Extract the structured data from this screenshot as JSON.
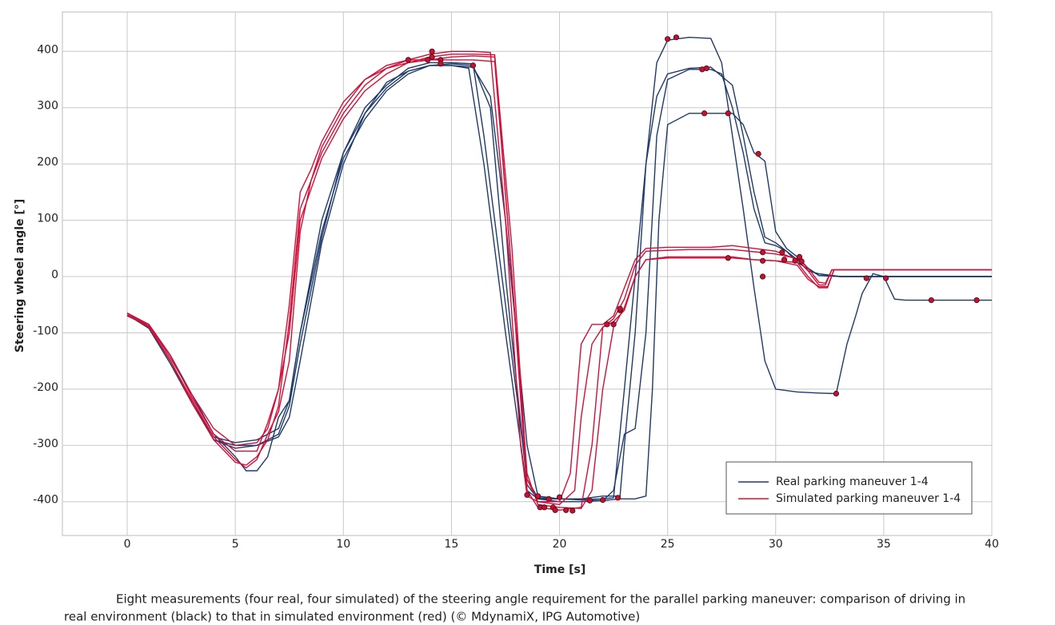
{
  "chart_data": {
    "type": "line",
    "xlabel": "Time [s]",
    "ylabel": "Steering wheel angle [°]",
    "caption": [
      "Eight measurements (four real, four simulated) of the steering angle requirement for the parallel parking maneuver: comparison of driving in",
      "real environment (black) to that in simulated environment (red) (© MdynamiX, IPG Automotive)"
    ],
    "xlim": [
      -3,
      40
    ],
    "ylim": [
      -460,
      470
    ],
    "xticks": [
      0,
      5,
      10,
      15,
      20,
      25,
      30,
      35,
      40
    ],
    "yticks": [
      -400,
      -300,
      -200,
      -100,
      0,
      100,
      200,
      300,
      400
    ],
    "grid": true,
    "legend": "lower right",
    "series": [
      {
        "name": "Real parking maneuver 1-4",
        "color": "#1f3a68",
        "lines": [
          {
            "x": [
              0,
              1,
              2,
              3,
              4,
              5,
              6,
              7,
              7.5,
              8,
              9,
              10,
              11,
              12,
              13,
              14,
              15,
              15.8,
              16.5,
              17.5,
              18.5,
              19,
              20,
              21,
              22,
              22.8,
              23,
              23.5,
              24,
              24.5,
              25,
              26,
              27,
              27.5,
              28,
              28.5,
              29,
              29.5,
              30,
              31,
              32,
              32.8,
              33.3,
              33.7,
              34,
              34.5,
              35,
              35.5,
              36,
              38,
              40
            ],
            "values": [
              -65,
              -90,
              -150,
              -220,
              -285,
              -295,
              -290,
              -270,
              -220,
              -100,
              100,
              220,
              290,
              345,
              365,
              375,
              375,
              370,
              200,
              -100,
              -380,
              -395,
              -395,
              -395,
              -390,
              -390,
              -300,
              -100,
              200,
              380,
              420,
              425,
              423,
              380,
              250,
              120,
              -20,
              -150,
              -200,
              -205,
              -207,
              -208,
              -120,
              -70,
              -30,
              5,
              0,
              -40,
              -42,
              -42,
              -42
            ]
          },
          {
            "x": [
              0,
              1,
              2,
              3,
              4,
              5,
              5.5,
              6,
              6.5,
              7,
              7.5,
              8,
              9,
              10,
              11,
              12,
              13,
              14,
              15,
              16,
              16.8,
              17.5,
              18.5,
              19,
              20,
              21,
              22,
              22.5,
              23,
              23.5,
              24,
              24.5,
              25,
              26,
              27,
              27.5,
              28,
              28.5,
              29,
              29.5,
              30,
              30.5,
              31,
              31.5,
              32,
              33,
              35,
              40
            ],
            "values": [
              -65,
              -85,
              -140,
              -210,
              -280,
              -320,
              -345,
              -345,
              -320,
              -250,
              -220,
              -100,
              80,
              210,
              280,
              330,
              360,
              375,
              378,
              375,
              300,
              0,
              -370,
              -395,
              -400,
              -400,
              -398,
              -380,
              -280,
              -270,
              -100,
              250,
              350,
              368,
              368,
              360,
              300,
              220,
              120,
              60,
              55,
              45,
              30,
              10,
              5,
              0,
              0,
              0
            ]
          },
          {
            "x": [
              0,
              1,
              2,
              3,
              4,
              5,
              6,
              7,
              7.5,
              8,
              9,
              10,
              11,
              12,
              13,
              14,
              15,
              16,
              16.8,
              17.5,
              18.5,
              19,
              20,
              21,
              22,
              22.8,
              23.5,
              24,
              24.3,
              24.6,
              25,
              26,
              27,
              28,
              28.5,
              29,
              29.5,
              30,
              30.5,
              31,
              31.5,
              32,
              33,
              40
            ],
            "values": [
              -70,
              -88,
              -150,
              -220,
              -290,
              -300,
              -300,
              -285,
              -250,
              -150,
              60,
              200,
              290,
              335,
              365,
              375,
              375,
              372,
              320,
              100,
              -300,
              -390,
              -395,
              -397,
              -398,
              -395,
              -395,
              -390,
              -200,
              100,
              270,
              290,
              290,
              290,
              270,
              220,
              205,
              80,
              50,
              35,
              15,
              2,
              0,
              0
            ]
          },
          {
            "x": [
              0,
              1,
              2,
              3,
              4,
              5,
              6,
              7,
              7.5,
              8,
              9,
              10,
              11,
              12,
              13,
              14,
              15,
              16,
              16.5,
              17.5,
              18.5,
              19,
              20,
              21,
              22,
              22.5,
              23,
              23.5,
              24,
              24.5,
              25,
              26,
              27,
              28,
              28.5,
              29,
              29.5,
              30,
              30.5,
              31,
              32,
              33,
              40
            ],
            "values": [
              -68,
              -92,
              -155,
              -225,
              -290,
              -305,
              -300,
              -280,
              -230,
              -120,
              70,
              220,
              300,
              340,
              370,
              380,
              380,
              378,
              250,
              -50,
              -360,
              -393,
              -395,
              -396,
              -395,
              -393,
              -200,
              0,
              200,
              320,
              360,
              370,
              372,
              340,
              250,
              150,
              70,
              60,
              45,
              25,
              2,
              0,
              0
            ]
          }
        ]
      },
      {
        "name": "Simulated parking maneuver 1-4",
        "color": "#d0103a",
        "lines": [
          {
            "x": [
              0,
              1,
              2,
              3,
              4,
              5,
              6,
              6.5,
              7,
              7.5,
              8,
              8.5,
              9,
              10,
              11,
              12,
              13,
              14,
              15,
              16,
              16.8,
              17.5,
              18.2,
              18.5,
              19,
              20,
              20.5,
              21,
              21.5,
              22,
              22.5,
              23,
              23.5,
              24,
              25,
              26,
              27,
              28,
              29,
              30,
              31,
              31.5,
              32,
              32.3,
              32.6,
              35,
              40
            ],
            "values": [
              -65,
              -85,
              -145,
              -210,
              -270,
              -300,
              -295,
              -270,
              -200,
              -50,
              150,
              190,
              240,
              310,
              350,
              370,
              385,
              395,
              400,
              400,
              398,
              100,
              -300,
              -390,
              -400,
              -400,
              -350,
              -120,
              -85,
              -85,
              -70,
              -20,
              30,
              50,
              52,
              52,
              52,
              55,
              50,
              45,
              30,
              10,
              -15,
              -15,
              12,
              12,
              12
            ]
          },
          {
            "x": [
              0,
              1,
              2,
              3,
              4,
              5,
              5.5,
              6,
              6.5,
              7,
              7.5,
              8,
              8.5,
              9,
              10,
              11,
              12,
              13,
              14,
              15,
              16,
              17,
              17.8,
              18.5,
              19,
              20,
              21,
              21.5,
              22,
              22.5,
              23,
              23.5,
              24,
              25,
              27,
              28,
              29,
              30,
              31,
              31.5,
              32,
              32.4,
              32.7,
              40
            ],
            "values": [
              -65,
              -88,
              -150,
              -220,
              -285,
              -325,
              -340,
              -325,
              -280,
              -240,
              -150,
              80,
              170,
              230,
              300,
              350,
              375,
              385,
              385,
              390,
              392,
              390,
              0,
              -380,
              -410,
              -415,
              -410,
              -300,
              -90,
              -80,
              -60,
              0,
              30,
              35,
              35,
              35,
              30,
              28,
              25,
              0,
              -20,
              -20,
              12,
              12
            ]
          },
          {
            "x": [
              0,
              1,
              2,
              3,
              4,
              5,
              5.5,
              6,
              6.5,
              7,
              7.5,
              8,
              9,
              10,
              11,
              12,
              13,
              14,
              15,
              16,
              17,
              17.6,
              18.5,
              19,
              20,
              21,
              21.5,
              22,
              22.5,
              23,
              23.5,
              24,
              25,
              28,
              29,
              30,
              31,
              31.5,
              32,
              32.4,
              32.7,
              40
            ],
            "values": [
              -68,
              -90,
              -150,
              -225,
              -290,
              -330,
              -335,
              -320,
              -290,
              -230,
              -80,
              120,
              220,
              290,
              340,
              370,
              380,
              385,
              385,
              385,
              382,
              100,
              -350,
              -405,
              -410,
              -412,
              -380,
              -200,
              -90,
              -55,
              0,
              30,
              33,
              33,
              30,
              28,
              20,
              -5,
              -18,
              -18,
              12,
              12
            ]
          },
          {
            "x": [
              0,
              1,
              2,
              3,
              4,
              5,
              6,
              6.5,
              7,
              7.5,
              8,
              9,
              10,
              11,
              12,
              13,
              14,
              15,
              16,
              17,
              17.8,
              18.5,
              19,
              20,
              20.7,
              21,
              21.5,
              22,
              22.5,
              23,
              23.5,
              24,
              26,
              28,
              29,
              30,
              31,
              31.5,
              32,
              32.3,
              32.6,
              40
            ],
            "values": [
              -70,
              -85,
              -140,
              -215,
              -280,
              -310,
              -310,
              -260,
              -200,
              -100,
              100,
              210,
              280,
              330,
              360,
              380,
              390,
              395,
              395,
              394,
              50,
              -360,
              -400,
              -405,
              -380,
              -250,
              -120,
              -90,
              -75,
              -40,
              20,
              45,
              48,
              48,
              44,
              40,
              32,
              15,
              -10,
              -12,
              12,
              12
            ]
          }
        ]
      }
    ],
    "markers": {
      "color": "#c8102e",
      "x": [
        13,
        13.9,
        14.1,
        14.1,
        14.5,
        14.5,
        16,
        18.5,
        19,
        19.1,
        19.3,
        19.5,
        19.7,
        19.8,
        20,
        20.3,
        20.6,
        21.4,
        22,
        22.2,
        22.5,
        22.7,
        22.8,
        22.8,
        25,
        25.4,
        26.6,
        26.7,
        26.8,
        27.8,
        27.8,
        29.2,
        29.4,
        29.4,
        29.4,
        30.3,
        30.4,
        30.9,
        31.1,
        31.2,
        32.8,
        34.2,
        35.1,
        37.2,
        39.3
      ],
      "y": [
        385,
        385,
        400,
        390,
        385,
        378,
        375,
        -388,
        -390,
        -410,
        -410,
        -395,
        -410,
        -415,
        -392,
        -415,
        -416,
        -398,
        -397,
        -85,
        -85,
        -393,
        -60,
        -57,
        422,
        425,
        368,
        290,
        370,
        290,
        33,
        218,
        43,
        28,
        0,
        43,
        30,
        28,
        35,
        27,
        -208,
        -3,
        -3,
        -42,
        -42
      ]
    }
  }
}
